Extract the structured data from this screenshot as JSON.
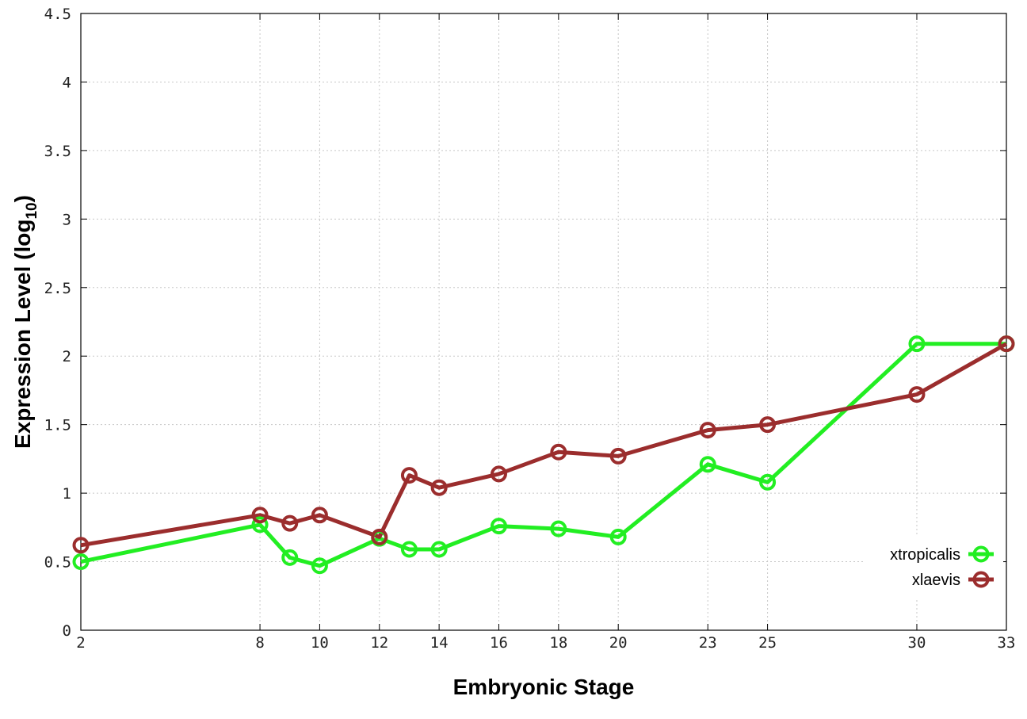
{
  "chart_data": {
    "type": "line",
    "xlabel": "Embryonic Stage",
    "ylabel_main": "Expression Level (log",
    "ylabel_sub": "10",
    "ylabel_close": ")",
    "x": [
      2,
      8,
      9,
      10,
      12,
      13,
      14,
      16,
      18,
      20,
      23,
      25,
      30,
      33
    ],
    "x_ticks": [
      2,
      8,
      10,
      12,
      14,
      16,
      18,
      20,
      23,
      25,
      30,
      33
    ],
    "xlim": [
      2,
      33
    ],
    "y_ticks": [
      "0",
      "0.5",
      "1",
      "1.5",
      "2",
      "2.5",
      "3",
      "3.5",
      "4",
      "4.5"
    ],
    "ylim": [
      0,
      4.5
    ],
    "grid": true,
    "legend_position": "right",
    "series": [
      {
        "name": "xtropicalis",
        "color": "#22ee22",
        "values": [
          0.5,
          0.77,
          0.53,
          0.47,
          0.67,
          0.59,
          0.59,
          0.76,
          0.74,
          0.68,
          1.21,
          1.08,
          2.09,
          2.09
        ]
      },
      {
        "name": "xlaevis",
        "color": "#9b2d2d",
        "values": [
          0.62,
          0.84,
          0.78,
          0.84,
          0.68,
          1.13,
          1.04,
          1.14,
          1.3,
          1.27,
          1.46,
          1.5,
          1.72,
          2.09
        ]
      }
    ]
  }
}
